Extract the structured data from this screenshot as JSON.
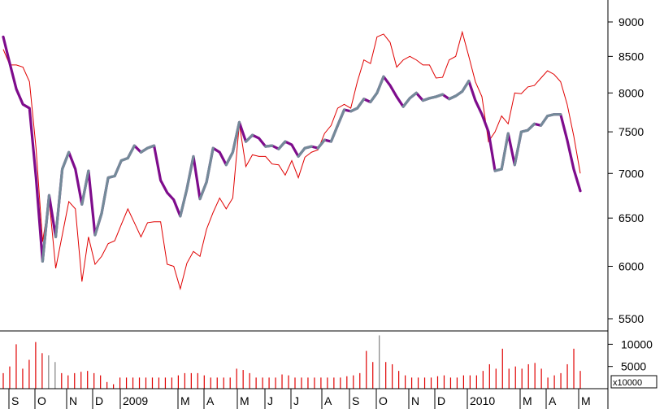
{
  "colors": {
    "background": "#ffffff",
    "axis": "#000000",
    "grid": "#000000",
    "price_line": "#7e0c8c",
    "price_line_shadow": "#748b99",
    "average_line": "#e00000",
    "volume_bar": "#e00000",
    "volume_bar_alt": "#808080"
  },
  "chart_data": [
    {
      "type": "line",
      "panel": "price",
      "y_scale": "log",
      "ylim": [
        5300,
        9300
      ],
      "y_ticks": [
        "9000",
        "8500",
        "8000",
        "7500",
        "7000",
        "6500",
        "6000",
        "5500"
      ],
      "x_ticks": [
        "S",
        "O",
        "N",
        "D",
        "2009",
        "M",
        "A",
        "M",
        "J",
        "J",
        "A",
        "S",
        "O",
        "N",
        "D",
        "2010",
        "M",
        "A",
        "M"
      ],
      "series": [
        {
          "values": [
            8780,
            8400,
            8050,
            7850,
            7800,
            6950,
            6050,
            6750,
            6300,
            7050,
            7250,
            7050,
            6650,
            7030,
            6320,
            6550,
            6950,
            6970,
            7150,
            7180,
            7330,
            7250,
            7300,
            7330,
            6920,
            6780,
            6700,
            6520,
            6820,
            7200,
            6710,
            6900,
            7300,
            7250,
            7100,
            7250,
            7620,
            7380,
            7460,
            7420,
            7320,
            7330,
            7290,
            7380,
            7340,
            7200,
            7300,
            7320,
            7300,
            7400,
            7380,
            7580,
            7780,
            7760,
            7800,
            7920,
            7880,
            8000,
            8220,
            8100,
            7950,
            7820,
            7930,
            8000,
            7900,
            7930,
            7950,
            7980,
            7920,
            7960,
            8020,
            8160,
            7900,
            7720,
            7500,
            7030,
            7050,
            7480,
            7100,
            7500,
            7520,
            7600,
            7580,
            7700,
            7720,
            7720,
            7400,
            7050,
            6800
          ]
        },
        {
          "values": [
            8600,
            8380,
            8380,
            8350,
            8150,
            7300,
            6250,
            6700,
            5980,
            6320,
            6680,
            6600,
            5850,
            6300,
            6020,
            6100,
            6230,
            6260,
            6430,
            6600,
            6450,
            6300,
            6450,
            6460,
            6460,
            6020,
            6000,
            5780,
            6030,
            6150,
            6100,
            6380,
            6560,
            6720,
            6600,
            6720,
            7600,
            7080,
            7220,
            7200,
            7200,
            7110,
            7100,
            6980,
            7150,
            6950,
            7190,
            7250,
            7280,
            7480,
            7580,
            7800,
            7850,
            7800,
            8150,
            8450,
            8400,
            8780,
            8820,
            8700,
            8350,
            8450,
            8500,
            8450,
            8380,
            8380,
            8200,
            8210,
            8450,
            8500,
            8850,
            8500,
            8150,
            7950,
            7380,
            7500,
            7700,
            7600,
            8000,
            7990,
            8080,
            8100,
            8200,
            8300,
            8250,
            8150,
            7850,
            7450,
            7000
          ]
        }
      ]
    },
    {
      "type": "bar",
      "panel": "volume",
      "unit": "x10000",
      "y_ticks": [
        "10000",
        "5000"
      ],
      "values": [
        3500,
        5000,
        10000,
        4500,
        6500,
        10500,
        8000,
        7500,
        6000,
        3500,
        3000,
        3500,
        3800,
        4000,
        3500,
        3000,
        1500,
        1000,
        2500,
        2500,
        2500,
        2500,
        2500,
        2500,
        2500,
        2500,
        2500,
        3000,
        3500,
        3500,
        3500,
        3000,
        2500,
        2500,
        2500,
        2500,
        4500,
        4200,
        3500,
        2500,
        2500,
        2500,
        2500,
        3200,
        3000,
        2500,
        2500,
        2500,
        2500,
        2500,
        2500,
        2500,
        2500,
        2800,
        3000,
        3500,
        8500,
        6000,
        12000,
        6000,
        5500,
        4000,
        3000,
        2500,
        2500,
        2500,
        2500,
        2800,
        3000,
        2500,
        2500,
        3000,
        3000,
        3000,
        4000,
        5500,
        4500,
        9000,
        4500,
        5000,
        4500,
        5500,
        5800,
        4500,
        2500,
        3000,
        3500,
        5500,
        9000,
        4000
      ],
      "grey_bars": [
        7,
        8,
        58
      ]
    }
  ]
}
